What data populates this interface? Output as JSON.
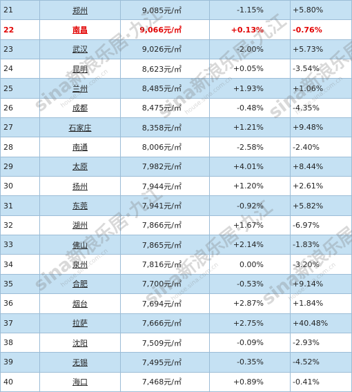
{
  "table": {
    "rows": [
      {
        "rank": "21",
        "city": "郑州",
        "price": "9,085元/㎡",
        "mom": "-1.15%",
        "yoy": "+5.80%",
        "style": "alt"
      },
      {
        "rank": "22",
        "city": "南昌",
        "price": "9,066元/㎡",
        "mom": "+0.13%",
        "yoy": "-0.76%",
        "style": "highlight"
      },
      {
        "rank": "23",
        "city": "武汉",
        "price": "9,026元/㎡",
        "mom": "-2.00%",
        "yoy": "+5.73%",
        "style": "alt"
      },
      {
        "rank": "24",
        "city": "昆明",
        "price": "8,623元/㎡",
        "mom": "+0.05%",
        "yoy": "-3.54%",
        "style": "plain"
      },
      {
        "rank": "25",
        "city": "兰州",
        "price": "8,485元/㎡",
        "mom": "+1.93%",
        "yoy": "+1.06%",
        "style": "alt"
      },
      {
        "rank": "26",
        "city": "成都",
        "price": "8,475元/㎡",
        "mom": "-0.48%",
        "yoy": "-4.35%",
        "style": "plain"
      },
      {
        "rank": "27",
        "city": "石家庄",
        "price": "8,358元/㎡",
        "mom": "+1.21%",
        "yoy": "+9.48%",
        "style": "alt"
      },
      {
        "rank": "28",
        "city": "南通",
        "price": "8,006元/㎡",
        "mom": "-2.58%",
        "yoy": "-2.40%",
        "style": "plain"
      },
      {
        "rank": "29",
        "city": "太原",
        "price": "7,982元/㎡",
        "mom": "+4.01%",
        "yoy": "+8.44%",
        "style": "alt"
      },
      {
        "rank": "30",
        "city": "扬州",
        "price": "7,944元/㎡",
        "mom": "+1.20%",
        "yoy": "+2.61%",
        "style": "plain"
      },
      {
        "rank": "31",
        "city": "东莞",
        "price": "7,941元/㎡",
        "mom": "-0.92%",
        "yoy": "+5.82%",
        "style": "alt"
      },
      {
        "rank": "32",
        "city": "湖州",
        "price": "7,866元/㎡",
        "mom": "+1.67%",
        "yoy": "-6.97%",
        "style": "plain"
      },
      {
        "rank": "33",
        "city": "佛山",
        "price": "7,865元/㎡",
        "mom": "+2.14%",
        "yoy": "-1.83%",
        "style": "alt"
      },
      {
        "rank": "34",
        "city": "泉州",
        "price": "7,816元/㎡",
        "mom": "0.00%",
        "yoy": "-3.20%",
        "style": "plain"
      },
      {
        "rank": "35",
        "city": "合肥",
        "price": "7,700元/㎡",
        "mom": "-0.53%",
        "yoy": "+9.14%",
        "style": "alt"
      },
      {
        "rank": "36",
        "city": "烟台",
        "price": "7,694元/㎡",
        "mom": "+2.87%",
        "yoy": "+1.84%",
        "style": "plain"
      },
      {
        "rank": "37",
        "city": "拉萨",
        "price": "7,666元/㎡",
        "mom": "+2.75%",
        "yoy": "+40.48%",
        "style": "alt"
      },
      {
        "rank": "38",
        "city": "沈阳",
        "price": "7,509元/㎡",
        "mom": "-0.09%",
        "yoy": "-2.93%",
        "style": "plain"
      },
      {
        "rank": "39",
        "city": "无锡",
        "price": "7,495元/㎡",
        "mom": "-0.35%",
        "yoy": "-4.52%",
        "style": "alt"
      },
      {
        "rank": "40",
        "city": "海口",
        "price": "7,468元/㎡",
        "mom": "+0.89%",
        "yoy": "-0.41%",
        "style": "plain"
      }
    ]
  },
  "watermark": {
    "brand": "sina新浪乐居·九江",
    "domain": "house.sina.com.cn"
  }
}
